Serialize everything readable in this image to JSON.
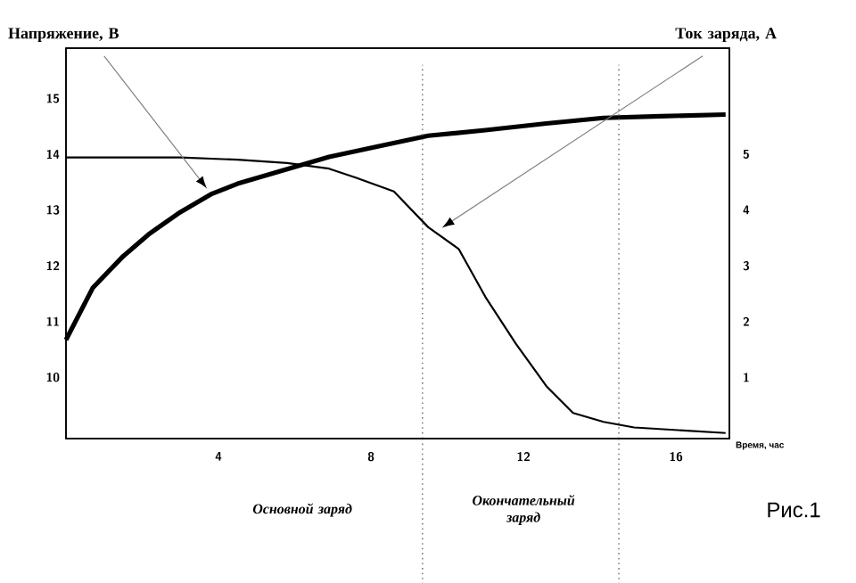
{
  "chart_data": {
    "type": "line",
    "xlabel": "Время, час",
    "ylabel": "Напряжение, В",
    "y2label": "Ток заряда, А",
    "xlim": [
      0,
      17.4
    ],
    "xticks": [
      4,
      8,
      12,
      16
    ],
    "ylim": [
      8.9,
      15.9
    ],
    "yticks": [
      10,
      11,
      12,
      13,
      14,
      15
    ],
    "y2lim": [
      -0.1,
      6.9
    ],
    "y2ticks": [
      1,
      2,
      3,
      4,
      5
    ],
    "series": [
      {
        "color": "#000000",
        "axis": "y",
        "x": [
          0,
          0.7,
          1.5,
          2.2,
          3.0,
          3.8,
          4.5,
          5.6,
          6.9,
          8.4,
          9.5,
          11.0,
          12.6,
          14.1,
          15.6,
          17.3
        ],
        "values": [
          10.67,
          11.6,
          12.17,
          12.58,
          12.96,
          13.28,
          13.47,
          13.69,
          13.95,
          14.17,
          14.33,
          14.43,
          14.55,
          14.65,
          14.68,
          14.71
        ]
      },
      {
        "color": "#000000",
        "axis": "y2",
        "x": [
          0,
          3.0,
          4.5,
          5.8,
          6.9,
          7.6,
          8.6,
          9.5,
          10.3,
          11.0,
          11.8,
          12.6,
          13.3,
          14.1,
          14.9,
          17.3
        ],
        "values": [
          4.94,
          4.94,
          4.9,
          4.84,
          4.74,
          4.58,
          4.33,
          3.69,
          3.3,
          2.44,
          1.6,
          0.84,
          0.36,
          0.2,
          0.1,
          0.0
        ]
      }
    ],
    "ref_lines": [
      {
        "axis": "x",
        "value": 9.35,
        "color": "#808080",
        "line_style": "dotted"
      },
      {
        "axis": "x",
        "value": 14.5,
        "color": "#808080",
        "line_style": "dotted"
      }
    ],
    "annotations": [
      "*Основной заряд*",
      "*Окончательный заряд*",
      "Рис.1"
    ],
    "grid": false,
    "legend": false,
    "marker": "none",
    "line_style": "solid"
  }
}
